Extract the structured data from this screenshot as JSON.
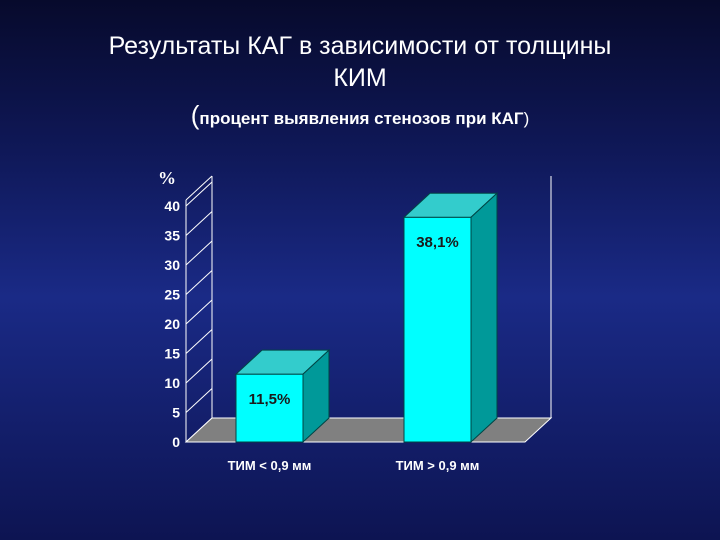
{
  "slide": {
    "title_line1": "Результаты КАГ в зависимости от толщины",
    "title_line2": "КИМ",
    "subtitle_open": "(",
    "subtitle_text": "процент выявления стенозов при КАГ",
    "subtitle_close": ")"
  },
  "colors": {
    "background": "#13206e",
    "bar_front": "#00ffff",
    "bar_top": "#33cccc",
    "bar_side": "#009999",
    "floor": "#808080",
    "text": "#ffffff",
    "label_text": "#1a1a1a"
  },
  "chart_data": {
    "type": "bar",
    "title": "",
    "xlabel": "",
    "ylabel": "%",
    "ylim": [
      0,
      40
    ],
    "yticks": [
      0,
      5,
      10,
      15,
      20,
      25,
      30,
      35,
      40
    ],
    "categories": [
      "ТИМ < 0,9 мм",
      "ТИМ > 0,9 мм"
    ],
    "values": [
      11.5,
      38.1
    ],
    "data_labels": [
      "11,5%",
      "38,1%"
    ],
    "grid": false,
    "legend": "none",
    "style": "3d"
  }
}
